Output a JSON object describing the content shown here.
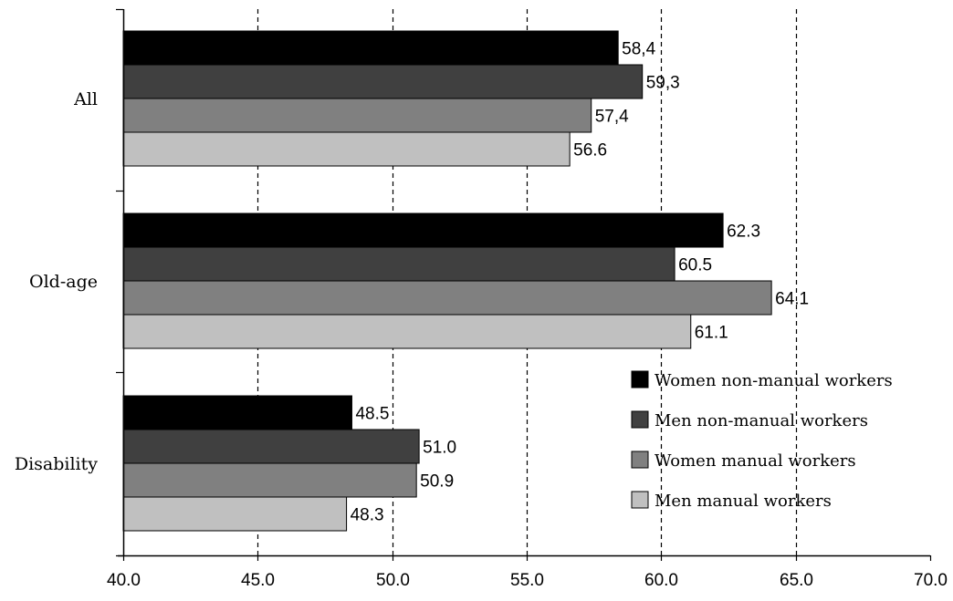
{
  "chart_data": {
    "type": "bar",
    "orientation": "horizontal",
    "categories": [
      "All",
      "Old-age",
      "Disability"
    ],
    "series": [
      {
        "name": "Women non-manual workers",
        "values": [
          58.4,
          62.3,
          48.5
        ],
        "labels": [
          "58,4",
          "62.3",
          "48.5"
        ],
        "color": "#000000"
      },
      {
        "name": "Men non-manual workers",
        "values": [
          59.3,
          60.5,
          51.0
        ],
        "labels": [
          "59,3",
          "60.5",
          "51.0"
        ],
        "color": "#404040"
      },
      {
        "name": "Women manual workers",
        "values": [
          57.4,
          64.1,
          50.9
        ],
        "labels": [
          "57,4",
          "64.1",
          "50.9"
        ],
        "color": "#808080"
      },
      {
        "name": "Men manual workers",
        "values": [
          56.6,
          61.1,
          48.3
        ],
        "labels": [
          "56.6",
          "61.1",
          "48.3"
        ],
        "color": "#c0c0c0"
      }
    ],
    "xlim": [
      40.0,
      70.0
    ],
    "xticks": [
      "40.0",
      "45.0",
      "50.0",
      "55.0",
      "60.0",
      "65.0",
      "70.0"
    ],
    "gridlines": "vertical dashed",
    "legend_position": "bottom-right",
    "title": "",
    "xlabel": "",
    "ylabel": ""
  }
}
